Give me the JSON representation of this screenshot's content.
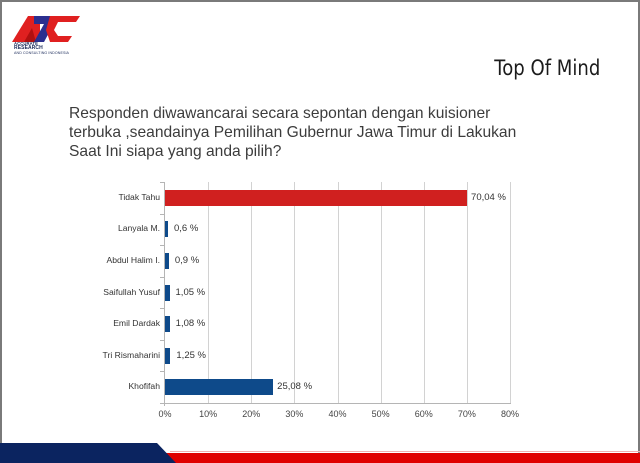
{
  "logo": {
    "lines": [
      "ACCURATE",
      "RESEARCH",
      "AND CONSULTING INDONESIA"
    ],
    "colors": {
      "red": "#e02020",
      "blue": "#2b2f8f"
    }
  },
  "slide": {
    "title": "Top Of Mind",
    "question": "Responden diwawancarai secara sepontan dengan kuisioner terbuka ,seandainya Pemilihan Gubernur Jawa Timur di Lakukan Saat Ini siapa yang anda pilih?"
  },
  "chart_data": {
    "type": "bar",
    "orientation": "horizontal",
    "title": "",
    "xlabel": "",
    "ylabel": "",
    "categories": [
      "Tidak Tahu",
      "Lanyala M.",
      "Abdul Halim I.",
      "Saifullah Yusuf",
      "Emil Dardak",
      "Tri Rismaharini",
      "Khofifah"
    ],
    "values": [
      70.04,
      0.6,
      0.9,
      1.05,
      1.08,
      1.25,
      25.08
    ],
    "value_labels": [
      "70,04 %",
      "0,6 %",
      "0,9 %",
      "1,05 %",
      "1,08 %",
      "1,25 %",
      "25,08 %"
    ],
    "colors": [
      "#d0201f",
      "#0e4a8a",
      "#0e4a8a",
      "#0e4a8a",
      "#0e4a8a",
      "#0e4a8a",
      "#0e4a8a"
    ],
    "xlim": [
      0,
      80
    ],
    "x_ticks": [
      "0%",
      "10%",
      "20%",
      "30%",
      "40%",
      "50%",
      "60%",
      "70%",
      "80%"
    ],
    "grid": "vertical",
    "legend": "none"
  },
  "footer": {
    "blue": "#0b2460",
    "red": "#e00000"
  }
}
